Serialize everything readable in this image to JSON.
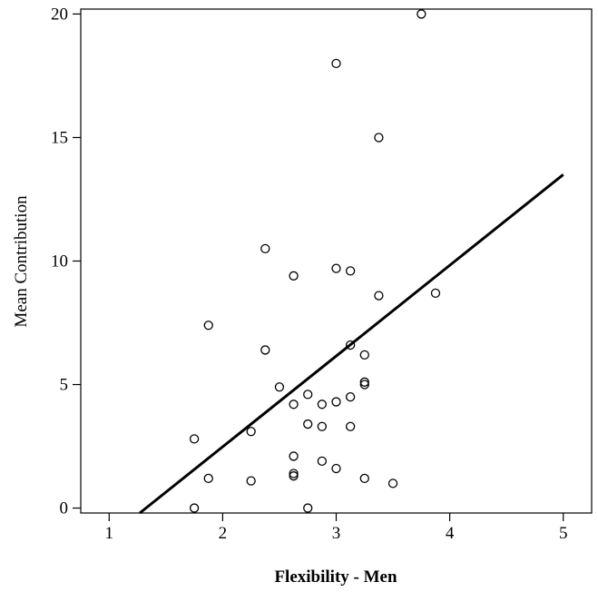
{
  "chart_data": {
    "type": "scatter",
    "xlabel": "Flexibility - Men",
    "ylabel": "Mean Contribution",
    "xlim": [
      0.75,
      5.25
    ],
    "ylim": [
      -0.2,
      20.2
    ],
    "xticks": [
      1,
      2,
      3,
      4,
      5
    ],
    "yticks": [
      0,
      5,
      10,
      15,
      20
    ],
    "grid": false,
    "legend": "none",
    "colors": {
      "axis": "#000000",
      "marker": "#000000",
      "fit_line": "#000000",
      "background": "#ffffff"
    },
    "points": [
      {
        "x": 3.75,
        "y": 20.0
      },
      {
        "x": 3.0,
        "y": 18.0
      },
      {
        "x": 3.375,
        "y": 15.0
      },
      {
        "x": 2.375,
        "y": 10.5
      },
      {
        "x": 3.0,
        "y": 9.7
      },
      {
        "x": 3.125,
        "y": 9.6
      },
      {
        "x": 2.625,
        "y": 9.4
      },
      {
        "x": 3.875,
        "y": 8.7
      },
      {
        "x": 3.375,
        "y": 8.6
      },
      {
        "x": 1.875,
        "y": 7.4
      },
      {
        "x": 3.125,
        "y": 6.6
      },
      {
        "x": 2.375,
        "y": 6.4
      },
      {
        "x": 3.25,
        "y": 6.2
      },
      {
        "x": 3.25,
        "y": 5.1
      },
      {
        "x": 3.25,
        "y": 5.0
      },
      {
        "x": 2.5,
        "y": 4.9
      },
      {
        "x": 2.75,
        "y": 4.6
      },
      {
        "x": 3.125,
        "y": 4.5
      },
      {
        "x": 3.0,
        "y": 4.3
      },
      {
        "x": 2.625,
        "y": 4.2
      },
      {
        "x": 2.875,
        "y": 4.2
      },
      {
        "x": 2.75,
        "y": 3.4
      },
      {
        "x": 2.875,
        "y": 3.3
      },
      {
        "x": 3.125,
        "y": 3.3
      },
      {
        "x": 2.25,
        "y": 3.1
      },
      {
        "x": 1.75,
        "y": 2.8
      },
      {
        "x": 2.625,
        "y": 2.1
      },
      {
        "x": 2.875,
        "y": 1.9
      },
      {
        "x": 3.0,
        "y": 1.6
      },
      {
        "x": 2.625,
        "y": 1.4
      },
      {
        "x": 2.625,
        "y": 1.3
      },
      {
        "x": 1.875,
        "y": 1.2
      },
      {
        "x": 3.25,
        "y": 1.2
      },
      {
        "x": 2.25,
        "y": 1.1
      },
      {
        "x": 3.5,
        "y": 1.0
      },
      {
        "x": 1.75,
        "y": 0.0
      },
      {
        "x": 2.75,
        "y": 0.0
      }
    ],
    "fit_line": {
      "x": [
        1.27,
        5.0
      ],
      "y": [
        -0.2,
        13.5
      ]
    }
  }
}
